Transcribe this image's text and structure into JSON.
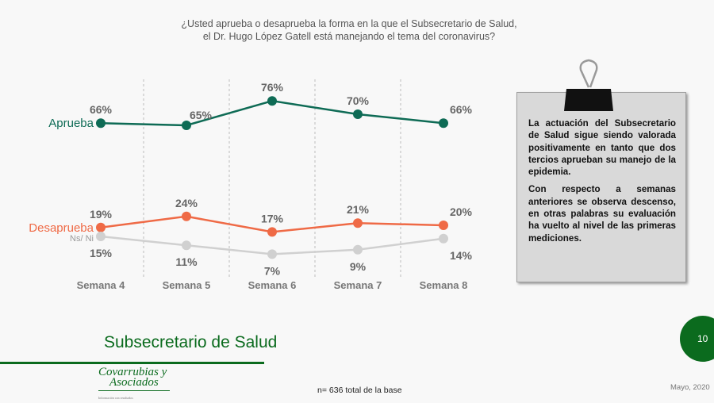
{
  "question": [
    "¿Usted aprueba o desaprueba la forma en la que el Subsecretario de Salud,",
    "el Dr. Hugo López Gatell está manejando el tema del coronavirus?"
  ],
  "chart_data": {
    "type": "line",
    "categories": [
      "Semana 4",
      "Semana 5",
      "Semana 6",
      "Semana 7",
      "Semana 8"
    ],
    "series": [
      {
        "name": "Aprueba",
        "values": [
          66,
          65,
          76,
          70,
          66
        ],
        "color": "#0e6b55",
        "labels": "above"
      },
      {
        "name": "Desaprueba",
        "values": [
          19,
          24,
          17,
          21,
          20
        ],
        "color": "#ef6a46",
        "labels": "above"
      },
      {
        "name": "Ns/ Ni",
        "values": [
          15,
          11,
          7,
          9,
          14
        ],
        "color": "#d0d0d0",
        "labels": "below"
      }
    ],
    "ylim": [
      0,
      100
    ],
    "value_suffix": "%"
  },
  "note": {
    "p1": "La actuación del Subsecretario de Salud sigue siendo valorada positivamente en tanto que dos tercios aprueban su manejo de la epidemia.",
    "p2": "Con respecto a semanas anteriores se observa descenso, en otras palabras su evaluación ha vuelto al nivel de las primeras mediciones."
  },
  "footer": {
    "title": "Subsecretario de Salud",
    "logo_line1": "Covarrubias y",
    "logo_line2": "Asociados",
    "logo_tag": "Información con resultados",
    "base": "n= 636 total de la base",
    "date": "Mayo, 2020",
    "page": "10"
  }
}
